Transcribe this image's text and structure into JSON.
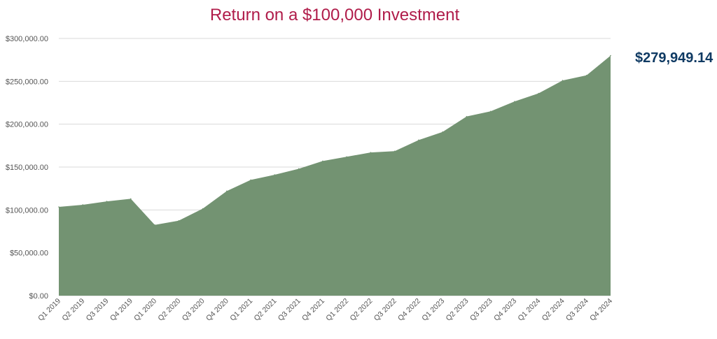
{
  "chart_data": {
    "type": "area",
    "title": "Return on a $100,000 Investment",
    "end_value_label": "$279,949.14",
    "xlabel": "",
    "ylabel": "",
    "ylim": [
      0,
      300000
    ],
    "y_ticks": [
      0,
      50000,
      100000,
      150000,
      200000,
      250000,
      300000
    ],
    "y_tick_labels": [
      "$0.00",
      "$50,000.00",
      "$100,000.00",
      "$150,000.00",
      "$200,000.00",
      "$250,000.00",
      "$300,000.00"
    ],
    "grid": true,
    "fill_color": "#739372",
    "categories": [
      "Q1 2019",
      "Q2 2019",
      "Q3 2019",
      "Q4 2019",
      "Q1 2020",
      "Q2 2020",
      "Q3 2020",
      "Q4 2020",
      "Q1 2021",
      "Q2 2021",
      "Q3 2021",
      "Q4 2021",
      "Q1 2022",
      "Q2 2022",
      "Q3 2022",
      "Q4 2022",
      "Q1 2023",
      "Q2 2023",
      "Q3 2023",
      "Q4 2023",
      "Q1 2024",
      "Q2 2024",
      "Q3 2024",
      "Q4 2024"
    ],
    "values": [
      103500,
      106000,
      110000,
      113000,
      82500,
      87500,
      101500,
      122000,
      135000,
      141000,
      148000,
      157000,
      162000,
      167000,
      168500,
      181500,
      191000,
      209000,
      215000,
      226500,
      236000,
      251000,
      257000,
      279949.14
    ]
  }
}
